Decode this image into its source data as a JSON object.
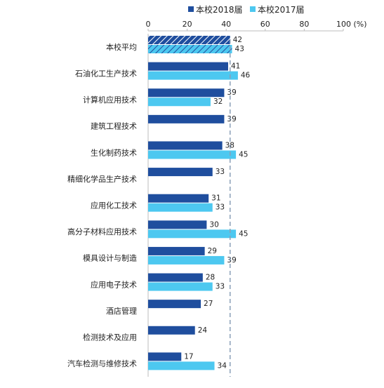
{
  "chart_data": {
    "type": "bar",
    "orientation": "horizontal",
    "title": "",
    "xlabel": "",
    "ylabel": "",
    "x_tick_labels": [
      "0",
      "20",
      "40",
      "60",
      "80",
      "100 (%)"
    ],
    "xlim": [
      0,
      100
    ],
    "legend_position": "top",
    "categories": [
      "本校平均",
      "石油化工生产技术",
      "计算机应用技术",
      "建筑工程技术",
      "生化制药技术",
      "精细化学品生产技术",
      "应用化工技术",
      "高分子材料应用技术",
      "模具设计与制造",
      "应用电子技术",
      "酒店管理",
      "检测技术及应用",
      "汽车检测与维修技术"
    ],
    "series": [
      {
        "name": "本校2018届",
        "color": "#1F4E9E",
        "values": [
          42,
          41,
          39,
          39,
          38,
          33,
          31,
          30,
          29,
          28,
          27,
          24,
          17
        ]
      },
      {
        "name": "本校2017届",
        "color": "#4DC8F0",
        "values": [
          43,
          46,
          32,
          null,
          45,
          null,
          33,
          45,
          39,
          33,
          null,
          null,
          34
        ]
      }
    ],
    "reference_line": 42,
    "average_row_style": "hatched"
  }
}
